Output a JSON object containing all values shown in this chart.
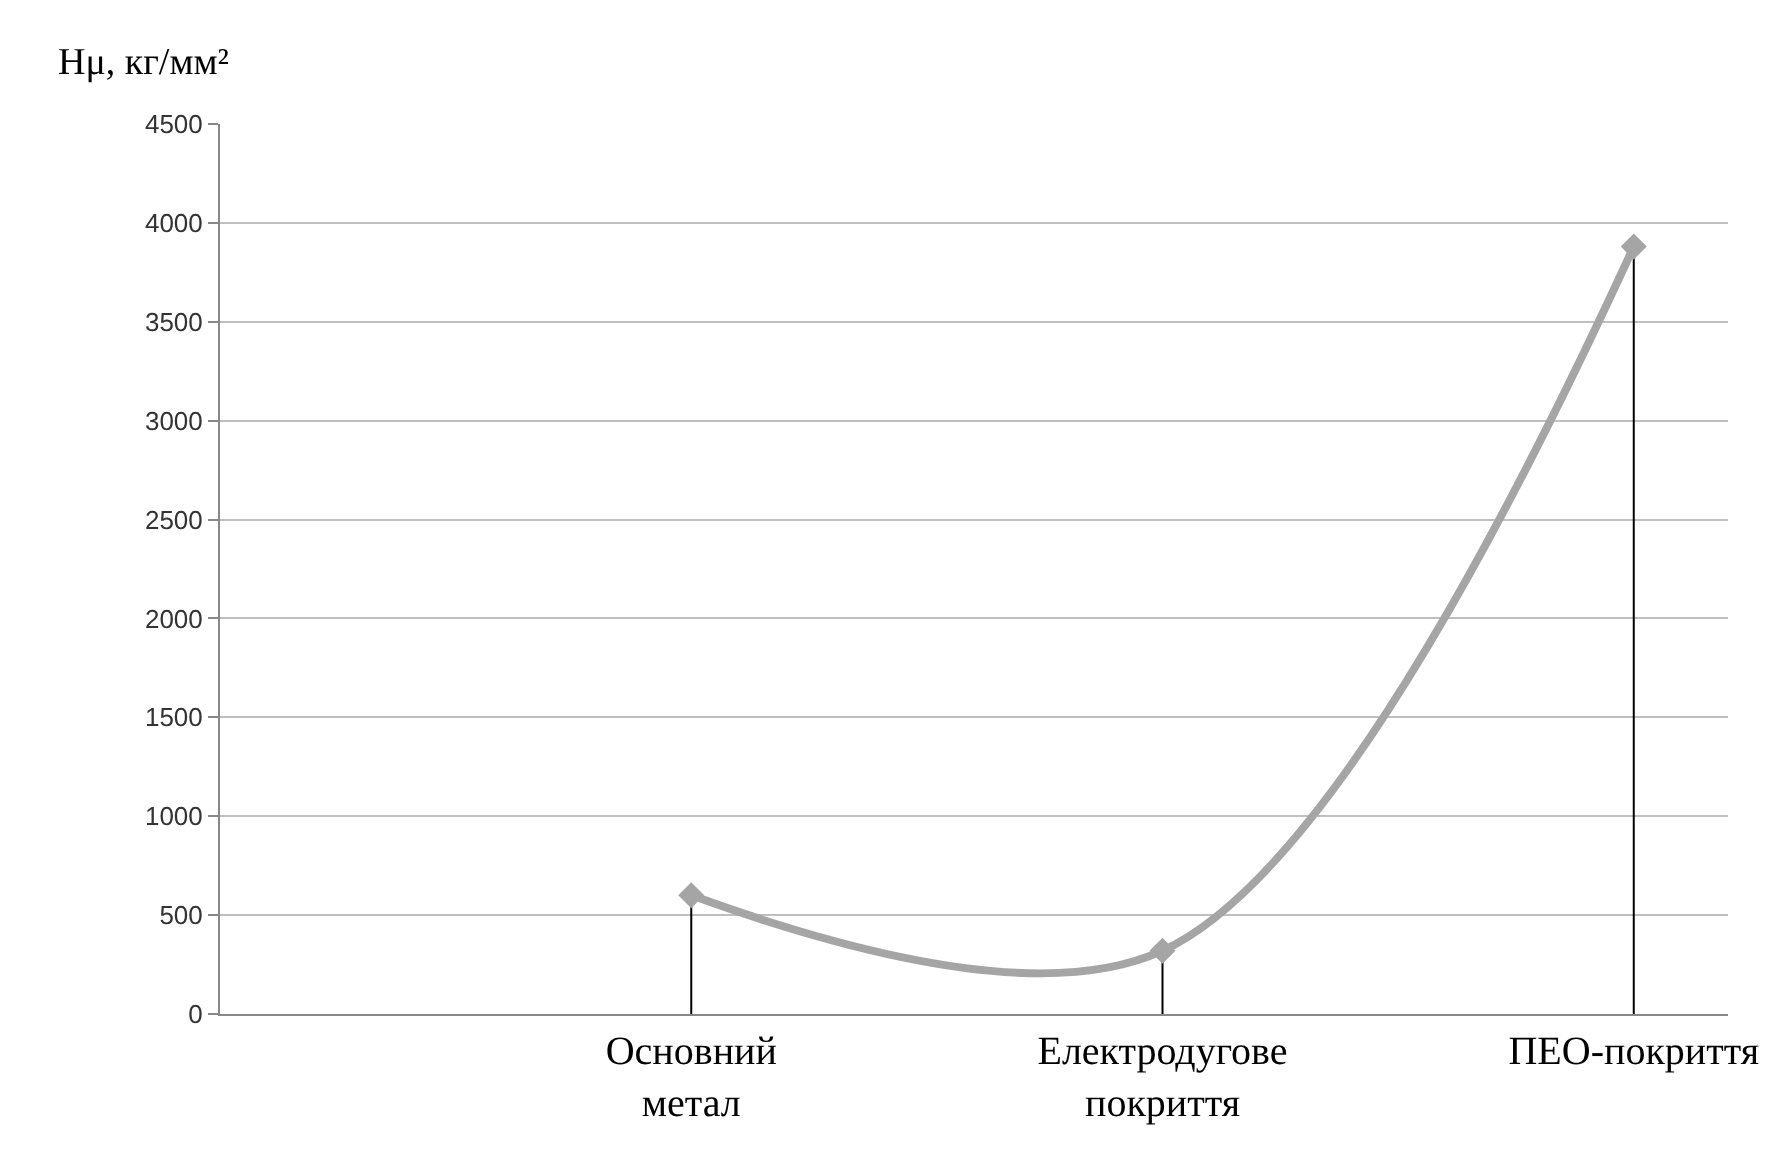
{
  "chart_data": {
    "type": "line",
    "ylabel": "Hμ, кг/мм²",
    "categories": [
      null,
      "Основний метал",
      "Електродугове покриття",
      "ПЕО-покриття"
    ],
    "values": [
      null,
      600,
      320,
      3880
    ],
    "errors": [
      null,
      [
        0,
        600
      ],
      [
        0,
        320
      ],
      [
        0,
        3880
      ]
    ],
    "color": "#a5a5a5",
    "marker": "diamond",
    "ylim": [
      0,
      4500
    ],
    "yticks": [
      0,
      500,
      1000,
      1500,
      2000,
      2500,
      3000,
      3500,
      4000,
      4500
    ],
    "grid": "y"
  }
}
